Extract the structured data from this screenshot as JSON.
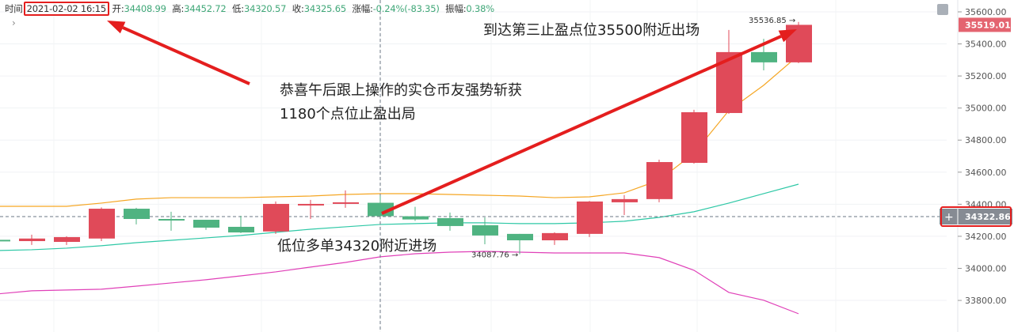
{
  "header": {
    "time_label": "时间",
    "time_value": "2021-02-02 16:15",
    "open_label": "开:",
    "open": "34408.99",
    "high_label": "高:",
    "high": "34452.72",
    "low_label": "低:",
    "low": "34320.57",
    "close_label": "收:",
    "close": "34325.65",
    "change_label": "涨幅:",
    "change": "-0.24%(-83.35)",
    "amplitude_label": "振幅:",
    "amplitude": "0.38%"
  },
  "annotations": {
    "line1": "恭喜午后跟上操作的实仓币友强势斩获",
    "line2": "1180个点位止盈出局",
    "exit": "到达第三止盈点位35500附近出场",
    "entry": "低位多单34320附近进场"
  },
  "colors": {
    "up": "#e04a59",
    "down": "#4fb381",
    "ma_orange": "#f5a623",
    "ma_teal": "#2ec8a6",
    "ma_pink": "#e040b8",
    "annotation": "#e41e1e",
    "last_price_bg": "#e46470",
    "crosshair_bg": "#868b93"
  },
  "icons": {
    "expand": "expand-icon",
    "chevron": "chevron-right-icon",
    "crosshair_add": "plus-icon"
  },
  "chart_data": {
    "type": "candlestick",
    "ylim": [
      33700,
      35650
    ],
    "yticks": [
      "35600.00",
      "35400.00",
      "35200.00",
      "35000.00",
      "34800.00",
      "34600.00",
      "34400.00",
      "34200.00",
      "34000.00",
      "33800.00"
    ],
    "grid": true,
    "candles": [
      {
        "o": 34178,
        "h": 34180,
        "l": 34170,
        "c": 34172
      },
      {
        "o": 34170,
        "h": 34210,
        "l": 34146,
        "c": 34186
      },
      {
        "o": 34165,
        "h": 34200,
        "l": 34146,
        "c": 34195
      },
      {
        "o": 34186,
        "h": 34380,
        "l": 34170,
        "c": 34372
      },
      {
        "o": 34372,
        "h": 34378,
        "l": 34274,
        "c": 34308
      },
      {
        "o": 34308,
        "h": 34353,
        "l": 34235,
        "c": 34300
      },
      {
        "o": 34303,
        "h": 34303,
        "l": 34240,
        "c": 34254
      },
      {
        "o": 34259,
        "h": 34328,
        "l": 34220,
        "c": 34224
      },
      {
        "o": 34230,
        "h": 34417,
        "l": 34215,
        "c": 34402
      },
      {
        "o": 34398,
        "h": 34427,
        "l": 34308,
        "c": 34402
      },
      {
        "o": 34407,
        "h": 34486,
        "l": 34378,
        "c": 34412
      },
      {
        "o": 34408.99,
        "h": 34452.72,
        "l": 34320.57,
        "c": 34325.65
      },
      {
        "o": 34325,
        "h": 34384,
        "l": 34296,
        "c": 34305
      },
      {
        "o": 34313,
        "h": 34348,
        "l": 34235,
        "c": 34264
      },
      {
        "o": 34269,
        "h": 34318,
        "l": 34150,
        "c": 34205
      },
      {
        "o": 34215,
        "h": 34215,
        "l": 34087.76,
        "c": 34175
      },
      {
        "o": 34175,
        "h": 34225,
        "l": 34146,
        "c": 34220
      },
      {
        "o": 34215,
        "h": 34420,
        "l": 34195,
        "c": 34417
      },
      {
        "o": 34412,
        "h": 34457,
        "l": 34333,
        "c": 34432
      },
      {
        "o": 34432,
        "h": 34678,
        "l": 34412,
        "c": 34663
      },
      {
        "o": 34658,
        "h": 34989,
        "l": 34653,
        "c": 34974
      },
      {
        "o": 34969,
        "h": 35487,
        "l": 34964,
        "c": 35349
      },
      {
        "o": 35349,
        "h": 35432,
        "l": 35235,
        "c": 35285
      },
      {
        "o": 35285,
        "h": 35536.85,
        "l": 35280,
        "c": 35519.01
      }
    ],
    "lines": {
      "orange": [
        34387,
        34387,
        34387,
        34407,
        34432,
        34441,
        34441,
        34441,
        34446,
        34451,
        34461,
        34466,
        34466,
        34461,
        34456,
        34451,
        34441,
        34446,
        34471,
        34550,
        34718,
        34984,
        35142,
        35329
      ],
      "teal": [
        34111,
        34116,
        34126,
        34141,
        34160,
        34175,
        34190,
        34205,
        34225,
        34244,
        34259,
        34274,
        34279,
        34284,
        34284,
        34279,
        34279,
        34284,
        34294,
        34318,
        34353,
        34407,
        34466,
        34525
      ],
      "pink": [
        33840,
        33860,
        33865,
        33870,
        33889,
        33909,
        33929,
        33953,
        33978,
        34008,
        34037,
        34072,
        34091,
        34101,
        34106,
        34101,
        34096,
        34096,
        34096,
        34067,
        33988,
        33850,
        33801,
        33717
      ]
    },
    "high_marker": "35536.85",
    "low_marker": "34087.76",
    "last_price": "35519.01",
    "crosshair_price": "34322.86",
    "crosshair_index": 11
  }
}
